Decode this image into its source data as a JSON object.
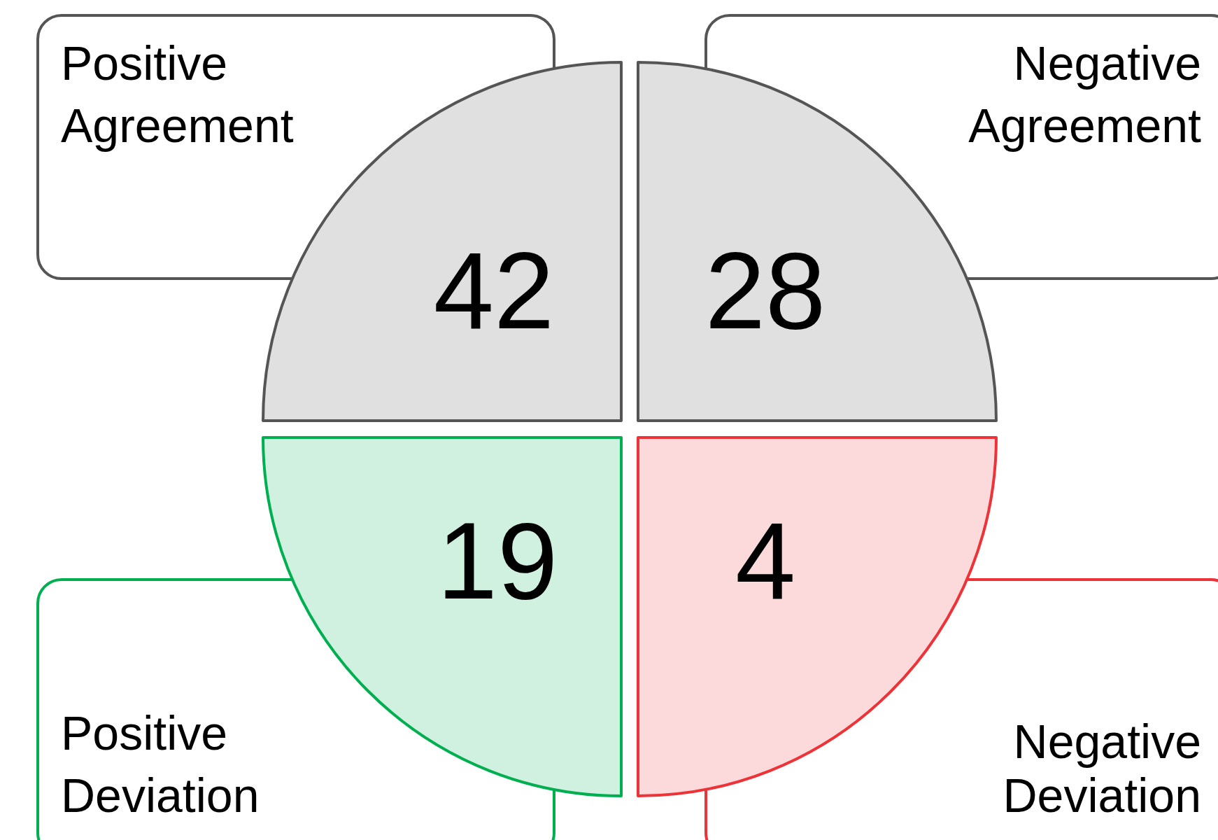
{
  "chart_data": {
    "type": "other",
    "categories": [
      "Positive Agreement",
      "Negative Agreement",
      "Positive Deviation",
      "Negative Deviation"
    ],
    "values": [
      42,
      28,
      19,
      4
    ],
    "colors": [
      "#555555",
      "#555555",
      "#00b050",
      "#ee3338"
    ],
    "data_labels": true
  }
}
